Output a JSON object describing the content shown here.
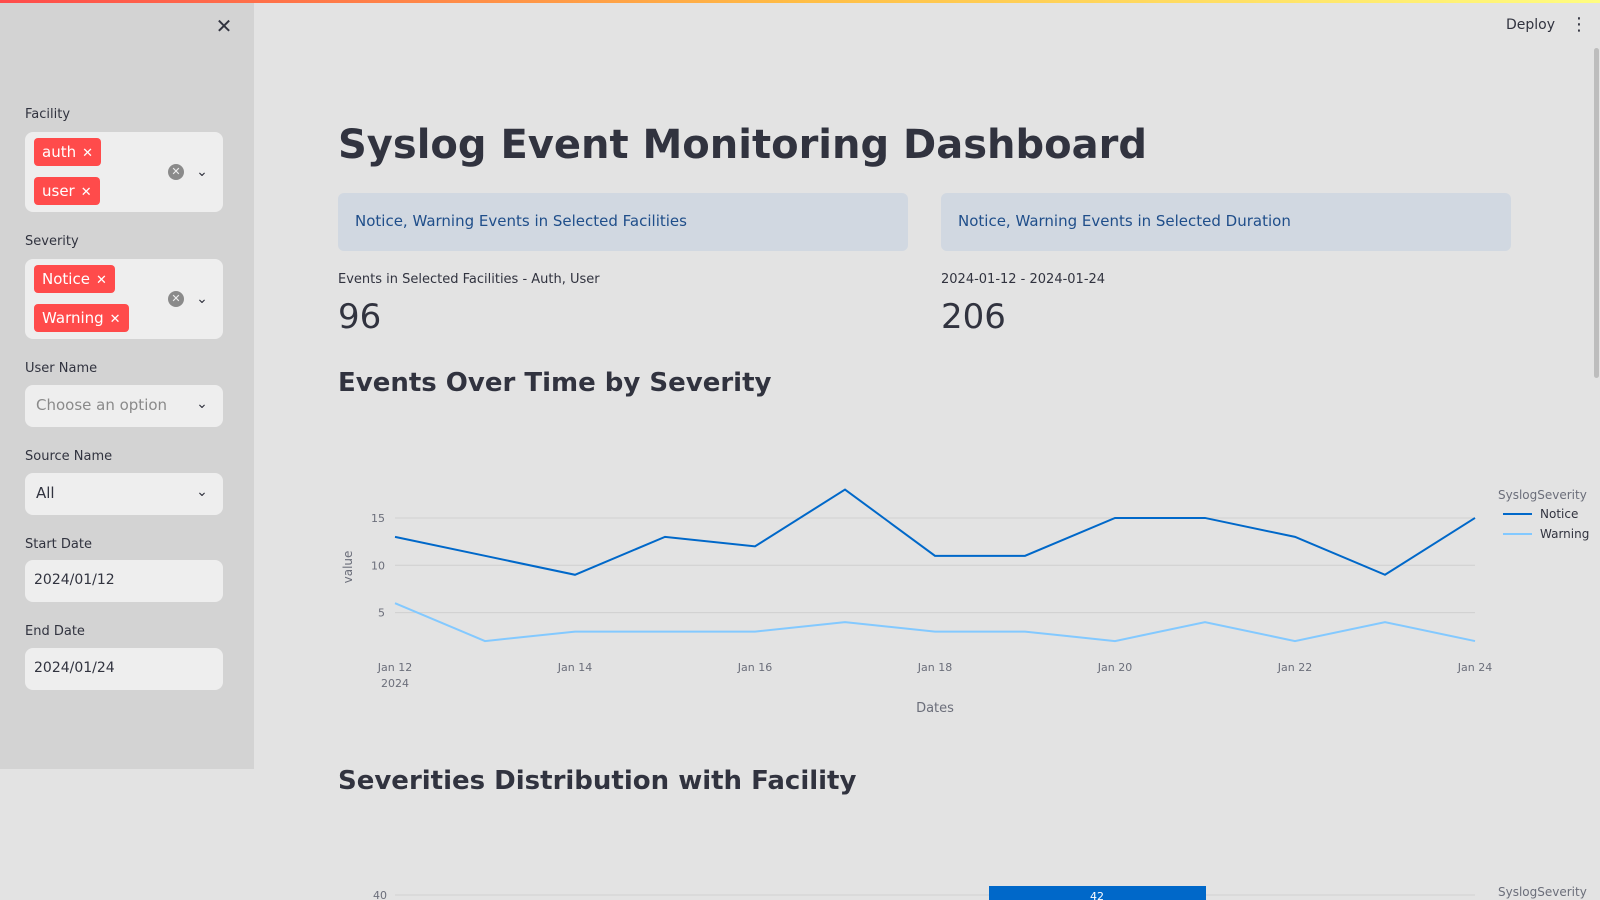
{
  "app": {
    "deploy_label": "Deploy"
  },
  "sidebar": {
    "facility": {
      "label": "Facility",
      "tags": [
        "auth",
        "user"
      ]
    },
    "severity": {
      "label": "Severity",
      "tags": [
        "Notice",
        "Warning"
      ]
    },
    "user_name": {
      "label": "User Name",
      "placeholder": "Choose an option"
    },
    "source_name": {
      "label": "Source Name",
      "value": "All"
    },
    "start_date": {
      "label": "Start Date",
      "value": "2024/01/12"
    },
    "end_date": {
      "label": "End Date",
      "value": "2024/01/24"
    }
  },
  "main": {
    "title": "Syslog Event Monitoring Dashboard",
    "info_facilities": "Notice, Warning Events in Selected Facilities",
    "info_duration": "Notice, Warning Events in Selected Duration",
    "metric_facilities": {
      "label": "Events in Selected Facilities - Auth, User",
      "value": "96"
    },
    "metric_duration": {
      "label": "2024-01-12 - 2024-01-24",
      "value": "206"
    },
    "section_time": "Events Over Time by Severity",
    "section_dist": "Severities Distribution with Facility"
  },
  "chart_data": [
    {
      "type": "line",
      "x": [
        "2024-01-12",
        "2024-01-13",
        "2024-01-14",
        "2024-01-15",
        "2024-01-16",
        "2024-01-17",
        "2024-01-18",
        "2024-01-19",
        "2024-01-20",
        "2024-01-21",
        "2024-01-22",
        "2024-01-23",
        "2024-01-24"
      ],
      "x_tick_labels": [
        "Jan 12",
        "Jan 14",
        "Jan 16",
        "Jan 18",
        "Jan 20",
        "Jan 22",
        "Jan 24"
      ],
      "x_year_label": "2024",
      "series": [
        {
          "name": "Notice",
          "color": "#0068c9",
          "values": [
            13,
            11,
            9,
            13,
            12,
            18,
            11,
            11,
            15,
            15,
            13,
            9,
            15
          ]
        },
        {
          "name": "Warning",
          "color": "#83c9ff",
          "values": [
            6,
            2,
            3,
            3,
            3,
            4,
            3,
            3,
            2,
            4,
            2,
            4,
            2
          ]
        }
      ],
      "xlabel": "Dates",
      "ylabel": "value",
      "y_ticks": [
        5,
        10,
        15
      ],
      "legend_title": "SyslogSeverity",
      "legend_position": "right"
    },
    {
      "type": "bar",
      "y_ticks": [
        40
      ],
      "data_labels": [
        "42"
      ],
      "values": [
        42
      ],
      "legend_title": "SyslogSeverity",
      "bar_color": "#0068c9"
    }
  ]
}
